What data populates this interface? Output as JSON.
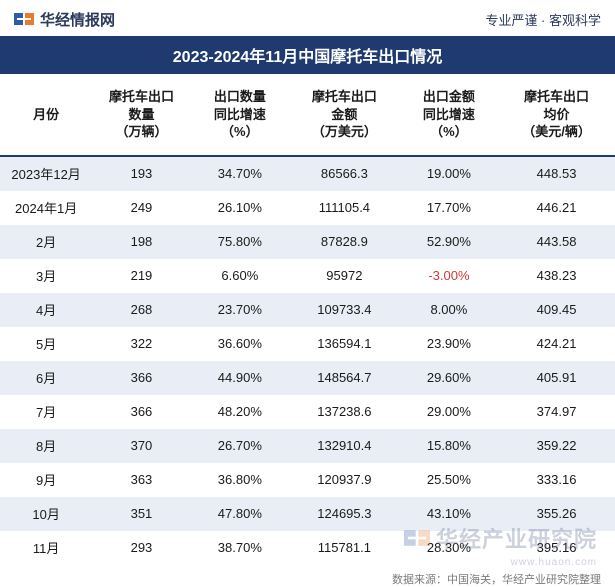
{
  "header": {
    "brand_text": "华经情报网",
    "tagline": "专业严谨 · 客观科学",
    "logo_colors": {
      "blue": "#2f5ba8",
      "orange": "#e87b2e"
    }
  },
  "title": "2023-2024年11月中国摩托车出口情况",
  "columns": [
    "月份",
    "摩托车出口\n数量\n（万辆）",
    "出口数量\n同比增速\n（%）",
    "摩托车出口\n金额\n（万美元）",
    "出口金额\n同比增速\n（%）",
    "摩托车出口\n均价\n（美元/辆）"
  ],
  "rows": [
    {
      "month": "2023年12月",
      "qty": "193",
      "qty_growth": "34.70%",
      "value": "86566.3",
      "val_growth": "19.00%",
      "price": "448.53",
      "val_neg": false
    },
    {
      "month": "2024年1月",
      "qty": "249",
      "qty_growth": "26.10%",
      "value": "111105.4",
      "val_growth": "17.70%",
      "price": "446.21",
      "val_neg": false
    },
    {
      "month": "2月",
      "qty": "198",
      "qty_growth": "75.80%",
      "value": "87828.9",
      "val_growth": "52.90%",
      "price": "443.58",
      "val_neg": false
    },
    {
      "month": "3月",
      "qty": "219",
      "qty_growth": "6.60%",
      "value": "95972",
      "val_growth": "-3.00%",
      "price": "438.23",
      "val_neg": true
    },
    {
      "month": "4月",
      "qty": "268",
      "qty_growth": "23.70%",
      "value": "109733.4",
      "val_growth": "8.00%",
      "price": "409.45",
      "val_neg": false
    },
    {
      "month": "5月",
      "qty": "322",
      "qty_growth": "36.60%",
      "value": "136594.1",
      "val_growth": "23.90%",
      "price": "424.21",
      "val_neg": false
    },
    {
      "month": "6月",
      "qty": "366",
      "qty_growth": "44.90%",
      "value": "148564.7",
      "val_growth": "29.60%",
      "price": "405.91",
      "val_neg": false
    },
    {
      "month": "7月",
      "qty": "366",
      "qty_growth": "48.20%",
      "value": "137238.6",
      "val_growth": "29.00%",
      "price": "374.97",
      "val_neg": false
    },
    {
      "month": "8月",
      "qty": "370",
      "qty_growth": "26.70%",
      "value": "132910.4",
      "val_growth": "15.80%",
      "price": "359.22",
      "val_neg": false
    },
    {
      "month": "9月",
      "qty": "363",
      "qty_growth": "36.80%",
      "value": "120937.9",
      "val_growth": "25.50%",
      "price": "333.16",
      "val_neg": false
    },
    {
      "month": "10月",
      "qty": "351",
      "qty_growth": "47.80%",
      "value": "124695.3",
      "val_growth": "43.10%",
      "price": "355.26",
      "val_neg": false
    },
    {
      "month": "11月",
      "qty": "293",
      "qty_growth": "38.70%",
      "value": "115781.1",
      "val_growth": "28.30%",
      "price": "395.16",
      "val_neg": false
    }
  ],
  "footer": "数据来源：中国海关，华经产业研究院整理",
  "watermark": {
    "text": "华经产业研究院",
    "url": "www.huaon.com"
  },
  "styling": {
    "title_bg": "#1e3a6e",
    "title_fg": "#ffffff",
    "row_odd_bg": "#e9eef6",
    "row_even_bg": "#ffffff",
    "text_color": "#1a1a1a",
    "neg_color": "#d23838",
    "header_border": "#1e3a6e",
    "body_font_size": 13,
    "title_font_size": 16
  }
}
